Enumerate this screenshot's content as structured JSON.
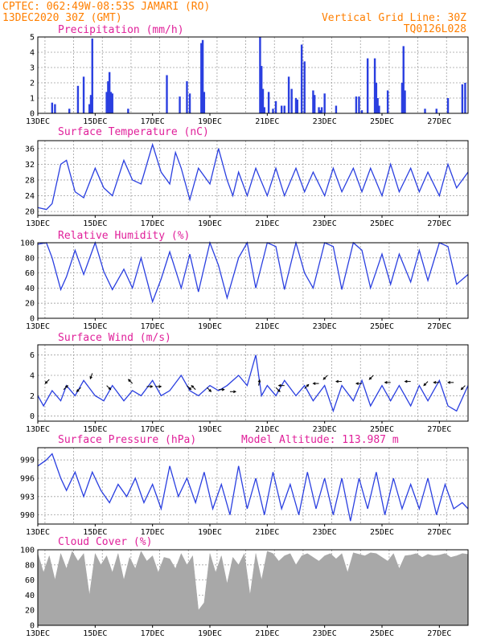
{
  "header": {
    "line1": "CPTEC:   062:49W-08:53S  JAMARI (RO)",
    "line2": "13DEC2020 30Z (GMT)",
    "grid_note": "Vertical Grid Line: 30Z",
    "code": "TQ0126L028"
  },
  "model_altitude": "Model Altitude: 113.987 m",
  "x_ticks": [
    "13DEC",
    "15DEC",
    "17DEC",
    "19DEC",
    "21DEC",
    "23DEC",
    "25DEC",
    "27DEC"
  ],
  "x_range_days": [
    13,
    28
  ],
  "colors": {
    "line": "#2a3fe0",
    "bar": "#2a3fe0",
    "cloud": "#a8a8a8",
    "title": "#e0209a",
    "header": "#ff7f00"
  },
  "chart_data": [
    {
      "type": "bar",
      "title": "Precipitation (mm/h)",
      "ylim": [
        0,
        5
      ],
      "yticks": [
        0,
        1,
        2,
        3,
        4,
        5
      ],
      "x": [
        13.5,
        13.6,
        14.1,
        14.4,
        14.6,
        14.8,
        14.85,
        14.9,
        15.4,
        15.45,
        15.5,
        15.55,
        15.6,
        16.15,
        17.5,
        17.95,
        18.2,
        18.3,
        18.7,
        18.75,
        18.8,
        20.75,
        20.8,
        20.85,
        20.9,
        21.05,
        21.2,
        21.3,
        21.5,
        21.6,
        21.75,
        21.85,
        22.0,
        22.05,
        22.2,
        22.3,
        22.6,
        22.65,
        22.8,
        22.85,
        22.9,
        23.0,
        23.4,
        24.1,
        24.2,
        24.3,
        24.5,
        24.75,
        24.8,
        24.85,
        24.9,
        25.2,
        25.7,
        25.75,
        25.8,
        26.5,
        26.9,
        27.3,
        27.8,
        27.9
      ],
      "values": [
        0.7,
        0.6,
        0.3,
        1.8,
        2.4,
        0.6,
        1.2,
        4.9,
        1.4,
        2.1,
        2.7,
        1.4,
        1.3,
        0.3,
        2.5,
        1.1,
        2.1,
        1.3,
        4.6,
        4.8,
        1.4,
        5.0,
        3.1,
        1.6,
        0.4,
        1.4,
        0.3,
        0.8,
        0.5,
        0.5,
        2.4,
        1.6,
        1.0,
        0.9,
        4.5,
        3.4,
        1.5,
        1.2,
        0.4,
        0.2,
        0.4,
        1.3,
        0.5,
        1.1,
        1.1,
        0.2,
        3.6,
        3.6,
        2.0,
        1.0,
        0.5,
        1.5,
        2.0,
        4.4,
        1.5,
        0.3,
        0.3,
        1.0,
        1.9,
        2.0
      ]
    },
    {
      "type": "line",
      "title": "Surface Temperature (nC)",
      "ylim": [
        19,
        38
      ],
      "yticks": [
        20,
        24,
        28,
        32,
        36
      ],
      "x": [
        13.0,
        13.3,
        13.5,
        13.8,
        14.0,
        14.3,
        14.6,
        15.0,
        15.3,
        15.6,
        16.0,
        16.3,
        16.6,
        17.0,
        17.3,
        17.6,
        17.8,
        18.0,
        18.3,
        18.6,
        19.0,
        19.3,
        19.6,
        19.8,
        20.0,
        20.3,
        20.6,
        21.0,
        21.3,
        21.6,
        22.0,
        22.3,
        22.6,
        23.0,
        23.3,
        23.6,
        24.0,
        24.3,
        24.6,
        25.0,
        25.3,
        25.6,
        26.0,
        26.3,
        26.6,
        27.0,
        27.3,
        27.6,
        28.0
      ],
      "values": [
        21,
        20.5,
        22,
        32,
        33,
        25,
        23.5,
        31,
        26,
        24,
        33,
        28,
        27,
        37,
        30,
        27,
        35,
        31,
        23,
        31,
        27,
        36,
        28,
        24,
        30,
        24,
        31,
        24,
        31,
        24,
        31,
        25,
        30,
        24,
        31,
        25,
        31,
        25,
        31,
        24,
        32,
        25,
        31,
        25,
        30,
        24,
        32,
        26,
        30
      ]
    },
    {
      "type": "line",
      "title": "Relative Humidity (%)",
      "ylim": [
        0,
        100
      ],
      "yticks": [
        0,
        20,
        40,
        60,
        80,
        100
      ],
      "x": [
        13.0,
        13.3,
        13.5,
        13.8,
        14.0,
        14.3,
        14.6,
        15.0,
        15.3,
        15.6,
        16.0,
        16.3,
        16.6,
        17.0,
        17.3,
        17.6,
        18.0,
        18.3,
        18.6,
        19.0,
        19.3,
        19.6,
        20.0,
        20.3,
        20.6,
        21.0,
        21.3,
        21.6,
        22.0,
        22.3,
        22.6,
        23.0,
        23.3,
        23.6,
        24.0,
        24.3,
        24.6,
        25.0,
        25.3,
        25.6,
        26.0,
        26.3,
        26.6,
        27.0,
        27.3,
        27.6,
        28.0
      ],
      "values": [
        98,
        100,
        80,
        38,
        55,
        90,
        58,
        100,
        62,
        38,
        65,
        40,
        80,
        22,
        52,
        88,
        40,
        85,
        35,
        100,
        70,
        27,
        80,
        100,
        40,
        100,
        95,
        38,
        100,
        60,
        40,
        100,
        95,
        38,
        100,
        90,
        40,
        85,
        45,
        85,
        48,
        90,
        50,
        100,
        95,
        45,
        58
      ]
    },
    {
      "type": "line",
      "title": "Surface Wind (m/s)",
      "ylim": [
        -0.5,
        7
      ],
      "yticks": [
        0,
        2,
        4,
        6
      ],
      "x": [
        13.0,
        13.2,
        13.5,
        13.8,
        14.0,
        14.3,
        14.6,
        15.0,
        15.3,
        15.6,
        16.0,
        16.3,
        16.6,
        17.0,
        17.3,
        17.6,
        18.0,
        18.3,
        18.6,
        19.0,
        19.3,
        19.6,
        20.0,
        20.3,
        20.6,
        20.8,
        21.0,
        21.3,
        21.6,
        22.0,
        22.3,
        22.6,
        23.0,
        23.3,
        23.6,
        24.0,
        24.3,
        24.6,
        25.0,
        25.3,
        25.6,
        26.0,
        26.3,
        26.6,
        27.0,
        27.3,
        27.6,
        28.0
      ],
      "values": [
        2,
        1,
        2.5,
        1.5,
        3,
        2,
        3.5,
        2,
        1.5,
        3,
        1.5,
        2.5,
        2,
        3.5,
        2,
        2.5,
        4,
        2.5,
        2,
        3,
        2.5,
        3,
        4,
        3,
        6,
        2,
        3,
        2,
        3.5,
        2,
        3,
        1.5,
        3,
        0.5,
        3,
        1.5,
        3.5,
        1,
        3,
        1.5,
        3,
        1,
        3,
        1.5,
        3.5,
        1,
        0.5,
        3
      ],
      "arrows": [
        {
          "x": 13.4,
          "y": 3.6,
          "a": 225
        },
        {
          "x": 13.9,
          "y": 2.6,
          "a": 45
        },
        {
          "x": 14.5,
          "y": 2.8,
          "a": 225
        },
        {
          "x": 14.9,
          "y": 4.2,
          "a": 250
        },
        {
          "x": 15.4,
          "y": 3.0,
          "a": 315
        },
        {
          "x": 16.3,
          "y": 3.2,
          "a": 135
        },
        {
          "x": 16.8,
          "y": 2.9,
          "a": 0
        },
        {
          "x": 17.1,
          "y": 2.9,
          "a": 0
        },
        {
          "x": 18.2,
          "y": 3.0,
          "a": 315
        },
        {
          "x": 18.5,
          "y": 2.6,
          "a": 135
        },
        {
          "x": 18.9,
          "y": 2.8,
          "a": 315
        },
        {
          "x": 19.3,
          "y": 2.6,
          "a": 0
        },
        {
          "x": 19.7,
          "y": 2.4,
          "a": 0
        },
        {
          "x": 20.7,
          "y": 3.0,
          "a": 80
        },
        {
          "x": 21.3,
          "y": 2.8,
          "a": 315
        },
        {
          "x": 21.6,
          "y": 3.0,
          "a": 180
        },
        {
          "x": 22.3,
          "y": 2.7,
          "a": 45
        },
        {
          "x": 22.8,
          "y": 3.2,
          "a": 180
        },
        {
          "x": 23.1,
          "y": 4.0,
          "a": 225
        },
        {
          "x": 23.6,
          "y": 3.4,
          "a": 180
        },
        {
          "x": 24.3,
          "y": 3.2,
          "a": 180
        },
        {
          "x": 24.7,
          "y": 4.0,
          "a": 225
        },
        {
          "x": 25.3,
          "y": 3.3,
          "a": 180
        },
        {
          "x": 26.0,
          "y": 3.4,
          "a": 180
        },
        {
          "x": 26.6,
          "y": 3.4,
          "a": 225
        },
        {
          "x": 27.0,
          "y": 3.3,
          "a": 180
        },
        {
          "x": 27.5,
          "y": 3.3,
          "a": 180
        },
        {
          "x": 27.9,
          "y": 3.0,
          "a": 225
        }
      ]
    },
    {
      "type": "line",
      "title": "Surface Pressure (hPa)",
      "ylim": [
        988.5,
        1001
      ],
      "yticks": [
        990,
        993,
        996,
        999
      ],
      "x": [
        13.0,
        13.3,
        13.5,
        13.8,
        14.0,
        14.3,
        14.6,
        14.9,
        15.2,
        15.5,
        15.8,
        16.1,
        16.4,
        16.7,
        17.0,
        17.3,
        17.6,
        17.9,
        18.2,
        18.5,
        18.8,
        19.1,
        19.4,
        19.7,
        20.0,
        20.3,
        20.6,
        20.9,
        21.2,
        21.5,
        21.8,
        22.1,
        22.4,
        22.7,
        23.0,
        23.3,
        23.6,
        23.9,
        24.2,
        24.5,
        24.8,
        25.1,
        25.4,
        25.7,
        26.0,
        26.3,
        26.6,
        26.9,
        27.2,
        27.5,
        27.8,
        28.0
      ],
      "values": [
        998,
        999,
        1000,
        996,
        994,
        997,
        993,
        997,
        994,
        992,
        995,
        993,
        996,
        992,
        995,
        991,
        998,
        993,
        996,
        992,
        997,
        991,
        995,
        990,
        998,
        991,
        996,
        990,
        997,
        991,
        995,
        990,
        997,
        991,
        996,
        990,
        996,
        989,
        996,
        991,
        997,
        990,
        996,
        991,
        995,
        991,
        996,
        990,
        995,
        991,
        992,
        991
      ]
    },
    {
      "type": "area",
      "title": "Cloud Cover (%)",
      "ylim": [
        0,
        100
      ],
      "yticks": [
        0,
        20,
        40,
        60,
        80,
        100
      ],
      "x": [
        13.0,
        13.2,
        13.4,
        13.6,
        13.8,
        14.0,
        14.2,
        14.4,
        14.6,
        14.8,
        15.0,
        15.2,
        15.4,
        15.6,
        15.8,
        16.0,
        16.2,
        16.4,
        16.6,
        16.8,
        17.0,
        17.2,
        17.4,
        17.6,
        17.8,
        18.0,
        18.2,
        18.4,
        18.6,
        18.8,
        19.0,
        19.2,
        19.4,
        19.6,
        19.8,
        20.0,
        20.2,
        20.4,
        20.6,
        20.8,
        21.0,
        21.2,
        21.4,
        21.6,
        21.8,
        22.0,
        22.2,
        22.4,
        22.6,
        22.8,
        23.0,
        23.2,
        23.4,
        23.6,
        23.8,
        24.0,
        24.2,
        24.4,
        24.6,
        24.8,
        25.0,
        25.2,
        25.4,
        25.6,
        25.8,
        26.0,
        26.2,
        26.4,
        26.6,
        26.8,
        27.0,
        27.2,
        27.4,
        27.6,
        27.8,
        28.0
      ],
      "values": [
        95,
        70,
        92,
        60,
        95,
        75,
        98,
        85,
        95,
        40,
        95,
        80,
        92,
        70,
        95,
        60,
        90,
        75,
        98,
        85,
        92,
        70,
        90,
        88,
        75,
        95,
        80,
        92,
        20,
        30,
        95,
        70,
        92,
        55,
        90,
        80,
        95,
        40,
        95,
        60,
        98,
        95,
        85,
        92,
        95,
        80,
        92,
        95,
        90,
        85,
        92,
        95,
        88,
        95,
        70,
        96,
        94,
        92,
        96,
        95,
        90,
        85,
        95,
        75,
        92,
        93,
        95,
        90,
        94,
        92,
        93,
        95,
        90,
        92,
        95,
        94
      ]
    }
  ]
}
